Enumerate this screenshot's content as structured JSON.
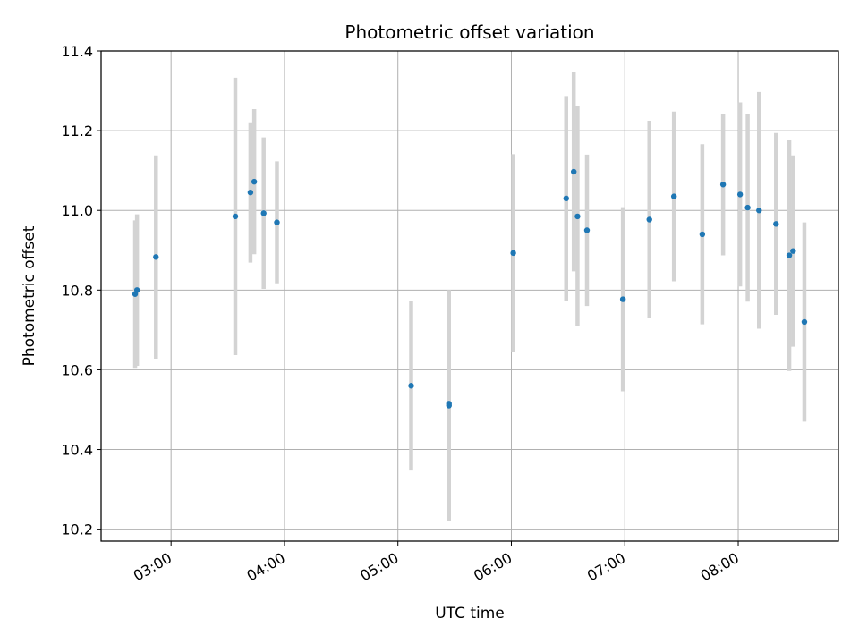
{
  "chart_data": {
    "type": "scatter",
    "title": "Photometric offset variation",
    "xlabel": "UTC time",
    "ylabel": "Photometric offset",
    "grid": true,
    "legend": "none",
    "x_ticks": [
      "03:00",
      "04:00",
      "05:00",
      "06:00",
      "07:00",
      "08:00"
    ],
    "y_ticks": [
      "10.2",
      "10.4",
      "10.6",
      "10.8",
      "11.0",
      "11.2",
      "11.4"
    ],
    "xlim": [
      "02:23",
      "08:53"
    ],
    "ylim": [
      10.17,
      11.4
    ],
    "colors": {
      "point": "#1f77b4",
      "errorbar": "#d3d3d3",
      "grid": "#b0b0b0"
    },
    "points": [
      {
        "time": "02:41",
        "y": 10.79,
        "err": 0.185
      },
      {
        "time": "02:42",
        "y": 10.8,
        "err": 0.19
      },
      {
        "time": "02:52",
        "y": 10.883,
        "err": 0.255
      },
      {
        "time": "03:34",
        "y": 10.985,
        "err": 0.348
      },
      {
        "time": "03:42",
        "y": 11.045,
        "err": 0.176
      },
      {
        "time": "03:44",
        "y": 11.072,
        "err": 0.182
      },
      {
        "time": "03:49",
        "y": 10.993,
        "err": 0.19
      },
      {
        "time": "03:56",
        "y": 10.97,
        "err": 0.153
      },
      {
        "time": "05:07",
        "y": 10.56,
        "err": 0.213
      },
      {
        "time": "05:27",
        "y": 10.51,
        "err": 0.29
      },
      {
        "time": "05:27",
        "y": 10.515,
        "err": 0.285
      },
      {
        "time": "06:01",
        "y": 10.893,
        "err": 0.248
      },
      {
        "time": "06:29",
        "y": 11.03,
        "err": 0.257
      },
      {
        "time": "06:33",
        "y": 11.097,
        "err": 0.25
      },
      {
        "time": "06:35",
        "y": 10.985,
        "err": 0.276
      },
      {
        "time": "06:40",
        "y": 10.95,
        "err": 0.19
      },
      {
        "time": "06:59",
        "y": 10.777,
        "err": 0.231
      },
      {
        "time": "07:13",
        "y": 10.977,
        "err": 0.248
      },
      {
        "time": "07:26",
        "y": 11.035,
        "err": 0.213
      },
      {
        "time": "07:41",
        "y": 10.94,
        "err": 0.226
      },
      {
        "time": "07:52",
        "y": 11.065,
        "err": 0.178
      },
      {
        "time": "08:01",
        "y": 11.04,
        "err": 0.231
      },
      {
        "time": "08:05",
        "y": 11.007,
        "err": 0.236
      },
      {
        "time": "08:11",
        "y": 11.0,
        "err": 0.297
      },
      {
        "time": "08:20",
        "y": 10.966,
        "err": 0.228
      },
      {
        "time": "08:27",
        "y": 10.887,
        "err": 0.29
      },
      {
        "time": "08:29",
        "y": 10.898,
        "err": 0.24
      },
      {
        "time": "08:35",
        "y": 10.72,
        "err": 0.25
      }
    ]
  }
}
